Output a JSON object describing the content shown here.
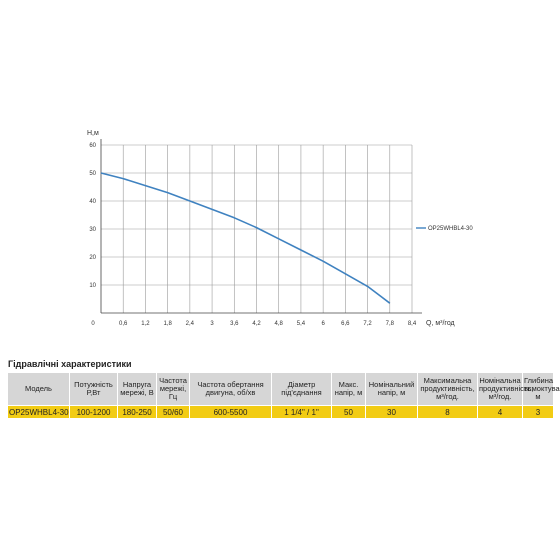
{
  "chart_data": {
    "type": "line",
    "xlabel": "Q, м³/год",
    "ylabel": "H,м",
    "xlim": [
      0,
      8.4
    ],
    "ylim": [
      0,
      60
    ],
    "xticks": [
      "0,6",
      "1,2",
      "1,8",
      "2,4",
      "3",
      "3,6",
      "4,2",
      "4,8",
      "5,4",
      "6",
      "6,6",
      "7,2",
      "7,8",
      "8,4"
    ],
    "yticks": [
      "10",
      "20",
      "30",
      "40",
      "50",
      "60"
    ],
    "origin_label": "0",
    "grid": true,
    "legend_position": "right",
    "series": [
      {
        "name": "OP25WHBL4-30",
        "color": "#3f82c0",
        "x": [
          0,
          0.6,
          1.2,
          1.8,
          2.4,
          3.0,
          3.6,
          4.2,
          4.8,
          5.4,
          6.0,
          6.6,
          7.2,
          7.8
        ],
        "y": [
          50,
          48,
          45.5,
          43,
          40,
          37,
          34,
          30.5,
          26.5,
          22.5,
          18.5,
          14,
          9.5,
          3.5
        ]
      }
    ]
  },
  "table": {
    "title": "Гідравлічні характеристики",
    "headers": [
      "Модель",
      "Потужність Р,Вт",
      "Напруга мережі, В",
      "Частота мережі, Гц",
      "Частота обертання двигуна, об/хв",
      "Діаметр під'єднання",
      "Макс. напір, м",
      "Номінальний напір, м",
      "Максимальна продуктивність, м³/год.",
      "Номінальна продуктивність, м³/год.",
      "Глибина всмоктування, м"
    ],
    "rows": [
      [
        "OP25WHBL4-30",
        "100-1200",
        "180-250",
        "50/60",
        "600-5500",
        "1 1/4\" / 1\"",
        "50",
        "30",
        "8",
        "4",
        "3"
      ]
    ]
  }
}
